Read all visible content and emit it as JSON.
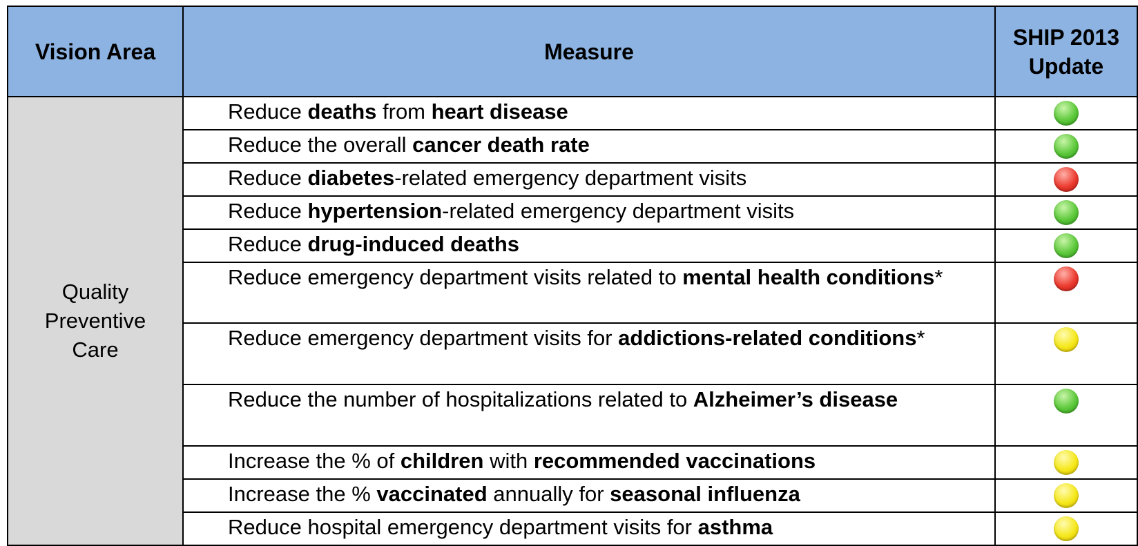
{
  "table": {
    "header": [
      "Vision Area",
      "Measure",
      "SHIP 2013 Update"
    ],
    "vision_area": "Quality Preventive Care",
    "header_color": "#8db3e2",
    "vision_area_color": "#d9d9d9",
    "rows": [
      {
        "measure": [
          {
            "text": "Reduce ",
            "bold": false
          },
          {
            "text": "deaths",
            "bold": true
          },
          {
            "text": " from ",
            "bold": false
          },
          {
            "text": "heart disease",
            "bold": true
          }
        ],
        "status": "green"
      },
      {
        "measure": [
          {
            "text": "Reduce the overall ",
            "bold": false
          },
          {
            "text": "cancer death rate",
            "bold": true
          }
        ],
        "status": "green"
      },
      {
        "measure": [
          {
            "text": "Reduce ",
            "bold": false
          },
          {
            "text": "diabetes",
            "bold": true
          },
          {
            "text": "-related emergency department visits",
            "bold": false
          }
        ],
        "status": "red"
      },
      {
        "measure": [
          {
            "text": "Reduce ",
            "bold": false
          },
          {
            "text": "hypertension",
            "bold": true
          },
          {
            "text": "-related emergency department visits",
            "bold": false
          }
        ],
        "status": "green"
      },
      {
        "measure": [
          {
            "text": "Reduce ",
            "bold": false
          },
          {
            "text": "drug-induced deaths",
            "bold": true
          }
        ],
        "status": "green"
      },
      {
        "measure": [
          {
            "text": "Reduce emergency department visits related to ",
            "bold": false
          },
          {
            "text": "mental health conditions",
            "bold": true
          },
          {
            "text": "*",
            "bold": false
          }
        ],
        "status": "red"
      },
      {
        "measure": [
          {
            "text": "Reduce emergency department visits for ",
            "bold": false
          },
          {
            "text": "addictions-related conditions",
            "bold": true
          },
          {
            "text": "*",
            "bold": false
          }
        ],
        "status": "yellow"
      },
      {
        "measure": [
          {
            "text": "Reduce the number of hospitalizations  related to ",
            "bold": false
          },
          {
            "text": "Alzheimer’s disease",
            "bold": true
          }
        ],
        "status": "green"
      },
      {
        "measure": [
          {
            "text": "Increase the % of ",
            "bold": false
          },
          {
            "text": "children",
            "bold": true
          },
          {
            "text": " with ",
            "bold": false
          },
          {
            "text": "recommended vaccinations",
            "bold": true
          }
        ],
        "status": "yellow"
      },
      {
        "measure": [
          {
            "text": "Increase the % ",
            "bold": false
          },
          {
            "text": "vaccinated",
            "bold": true
          },
          {
            "text": " annually for ",
            "bold": false
          },
          {
            "text": "seasonal influenza",
            "bold": true
          }
        ],
        "status": "yellow"
      },
      {
        "measure": [
          {
            "text": "Reduce hospital emergency department visits for ",
            "bold": false
          },
          {
            "text": "asthma",
            "bold": true
          }
        ],
        "status": "yellow"
      }
    ]
  }
}
